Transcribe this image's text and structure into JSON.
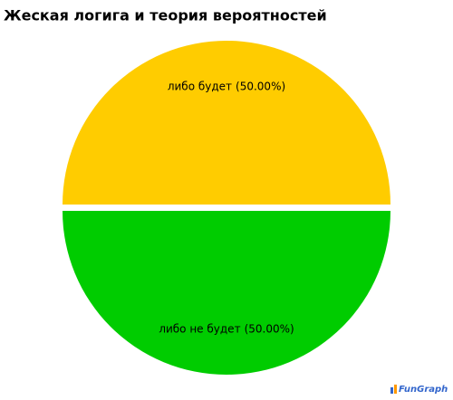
{
  "chart_data": {
    "type": "pie",
    "title": "Жеская логига и теория вероятностей",
    "categories": [
      "либо будет",
      "либо не будет"
    ],
    "values": [
      50,
      50
    ],
    "value_labels": [
      "(50.00%)",
      "(50.00%)"
    ],
    "colors": [
      "#ffcc00",
      "#00cc00"
    ]
  },
  "watermark": "FunGraph"
}
